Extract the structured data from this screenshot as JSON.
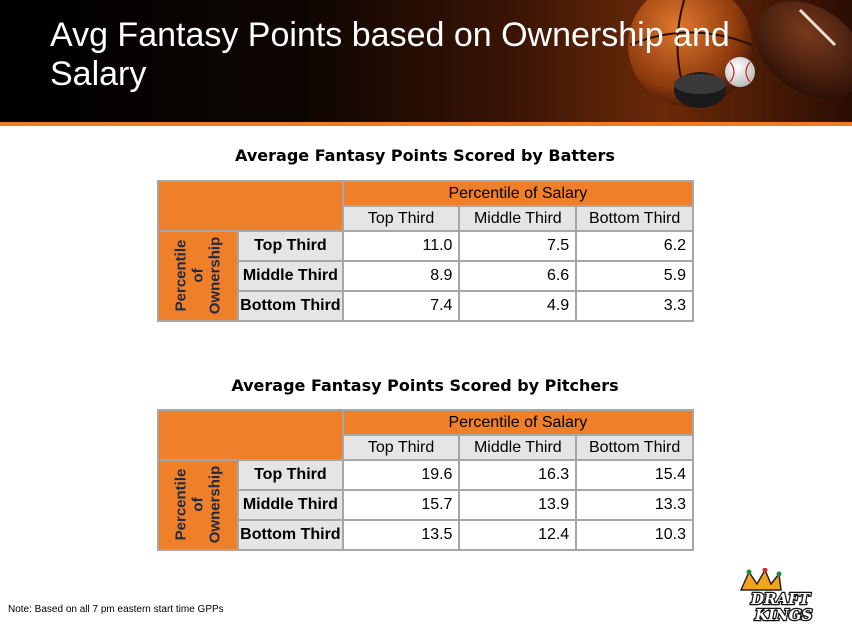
{
  "header": {
    "title": "Avg Fantasy Points based on Ownership and Salary"
  },
  "tables": [
    {
      "title": "Average Fantasy Points Scored by Batters",
      "column_group": "Percentile of Salary",
      "row_group": "Percentile\nof\nOwnership",
      "columns": [
        "Top Third",
        "Middle Third",
        "Bottom Third"
      ],
      "rows": [
        {
          "label": "Top Third",
          "values": [
            "11.0",
            "7.5",
            "6.2"
          ]
        },
        {
          "label": "Middle Third",
          "values": [
            "8.9",
            "6.6",
            "5.9"
          ]
        },
        {
          "label": "Bottom Third",
          "values": [
            "7.4",
            "4.9",
            "3.3"
          ]
        }
      ]
    },
    {
      "title": "Average Fantasy Points Scored by Pitchers",
      "column_group": "Percentile of Salary",
      "row_group": "Percentile\nof\nOwnership",
      "columns": [
        "Top Third",
        "Middle Third",
        "Bottom Third"
      ],
      "rows": [
        {
          "label": "Top Third",
          "values": [
            "19.6",
            "16.3",
            "15.4"
          ]
        },
        {
          "label": "Middle Third",
          "values": [
            "15.7",
            "13.9",
            "13.3"
          ]
        },
        {
          "label": "Bottom Third",
          "values": [
            "13.5",
            "12.4",
            "10.3"
          ]
        }
      ]
    }
  ],
  "note": "Note: Based on all 7 pm eastern start time GPPs",
  "logo": {
    "text_line1": "DRAFT",
    "text_line2": "KINGS",
    "icon": "crown-icon"
  },
  "colors": {
    "accent_orange": "#f07f2a",
    "header_gray": "#e5e5e5",
    "ownership_text": "#1f2a44"
  }
}
